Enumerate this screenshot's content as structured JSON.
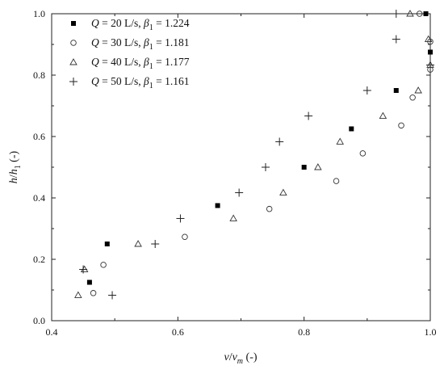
{
  "chart_data": {
    "type": "scatter",
    "x_axis": {
      "label_var": "v",
      "label_sep": "/",
      "label_var2": "v",
      "label_sub2": "m",
      "label_unit": " (-)",
      "range": [
        0.4,
        1.0
      ],
      "ticks": [
        "0.4",
        "0.6",
        "0.8",
        "1.0"
      ]
    },
    "y_axis": {
      "label_var": "h",
      "label_sep": "/",
      "label_var2": "h",
      "label_sub2": "1",
      "label_unit": " (-)",
      "range": [
        0.0,
        1.0
      ],
      "ticks": [
        "0.0",
        "0.2",
        "0.4",
        "0.6",
        "0.8",
        "1.0"
      ]
    },
    "legend_position": "top-left",
    "series": [
      {
        "legend": {
          "q_var": "Q",
          "q_text": " = 20 L/s, ",
          "b_var": "β",
          "b_sub": "1",
          "b_text": " = 1.224"
        },
        "marker": "filled-square",
        "points": [
          [
            0.46,
            0.125
          ],
          [
            0.488,
            0.25
          ],
          [
            0.663,
            0.375
          ],
          [
            0.8,
            0.5
          ],
          [
            0.875,
            0.625
          ],
          [
            0.946,
            0.75
          ],
          [
            1.0,
            0.875
          ],
          [
            0.993,
            1.0
          ]
        ]
      },
      {
        "legend": {
          "q_var": "Q",
          "q_text": " = 30 L/s, ",
          "b_var": "β",
          "b_sub": "1",
          "b_text": " = 1.181"
        },
        "marker": "open-circle",
        "points": [
          [
            0.466,
            0.09
          ],
          [
            0.482,
            0.182
          ],
          [
            0.611,
            0.273
          ],
          [
            0.745,
            0.364
          ],
          [
            0.851,
            0.455
          ],
          [
            0.893,
            0.545
          ],
          [
            0.954,
            0.636
          ],
          [
            0.972,
            0.727
          ],
          [
            1.0,
            0.818
          ],
          [
            1.0,
            0.909
          ],
          [
            0.983,
            1.0
          ]
        ]
      },
      {
        "legend": {
          "q_var": "Q",
          "q_text": " = 40 L/s, ",
          "b_var": "β",
          "b_sub": "1",
          "b_text": " = 1.177"
        },
        "marker": "open-triangle",
        "points": [
          [
            0.442,
            0.083
          ],
          [
            0.452,
            0.167
          ],
          [
            0.537,
            0.25
          ],
          [
            0.688,
            0.333
          ],
          [
            0.767,
            0.417
          ],
          [
            0.822,
            0.5
          ],
          [
            0.857,
            0.583
          ],
          [
            0.925,
            0.667
          ],
          [
            0.981,
            0.75
          ],
          [
            1.0,
            0.833
          ],
          [
            0.997,
            0.917
          ],
          [
            0.968,
            1.0
          ]
        ]
      },
      {
        "legend": {
          "q_var": "Q",
          "q_text": " = 50 L/s, ",
          "b_var": "β",
          "b_sub": "1",
          "b_text": " = 1.161"
        },
        "marker": "plus",
        "points": [
          [
            0.496,
            0.083
          ],
          [
            0.45,
            0.167
          ],
          [
            0.564,
            0.25
          ],
          [
            0.604,
            0.333
          ],
          [
            0.697,
            0.417
          ],
          [
            0.739,
            0.5
          ],
          [
            0.761,
            0.583
          ],
          [
            0.807,
            0.667
          ],
          [
            0.9,
            0.75
          ],
          [
            1.0,
            0.833
          ],
          [
            0.946,
            0.917
          ],
          [
            0.946,
            1.0
          ]
        ]
      }
    ]
  }
}
